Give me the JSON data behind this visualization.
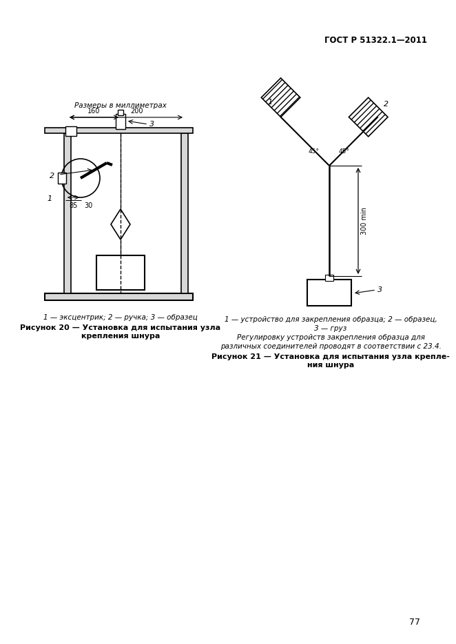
{
  "title_header": "ГОСТ Р 51322.1—2011",
  "page_number": "77",
  "fig20_caption_italic": "1 — эксцентрик; 2 — ручка; 3 — образец",
  "fig20_caption_bold": "Рисунок 20 — Установка для испытания узла\nкрепления шнура",
  "fig21_caption_italic1": "1 — устройство для закрепления образца; 2 — образец,",
  "fig21_caption_italic2": "3 — груз",
  "fig21_caption_italic3": "Регулировку устройств закрепления образца для",
  "fig21_caption_italic4": "различных соединителей проводят в соответствии с 23.4.",
  "fig21_caption_bold": "Рисунок 21 — Установка для испытания узла крепле-\nния шнура",
  "dim_label": "Размеры в миллиметрах",
  "bg_color": "#ffffff",
  "line_color": "#000000"
}
